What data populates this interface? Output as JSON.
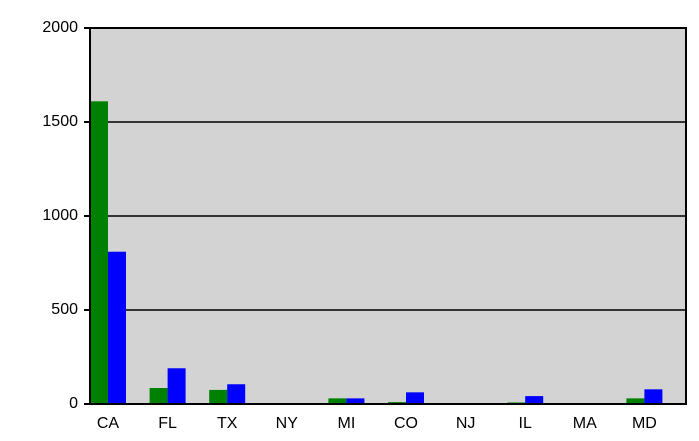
{
  "chart_data": {
    "type": "bar",
    "categories": [
      "CA",
      "FL",
      "TX",
      "NY",
      "MI",
      "CO",
      "NJ",
      "IL",
      "MA",
      "MD"
    ],
    "series": [
      {
        "color": "#008000",
        "values": [
          1610,
          85,
          75,
          0,
          30,
          10,
          0,
          8,
          0,
          30
        ]
      },
      {
        "color": "#0000ff",
        "values": [
          810,
          190,
          105,
          0,
          30,
          62,
          0,
          42,
          0,
          78
        ]
      }
    ],
    "ylim": [
      0,
      2000
    ],
    "yticks": [
      0,
      500,
      1000,
      1500,
      2000
    ],
    "grid": true,
    "plot_background": "#d3d3d3"
  }
}
